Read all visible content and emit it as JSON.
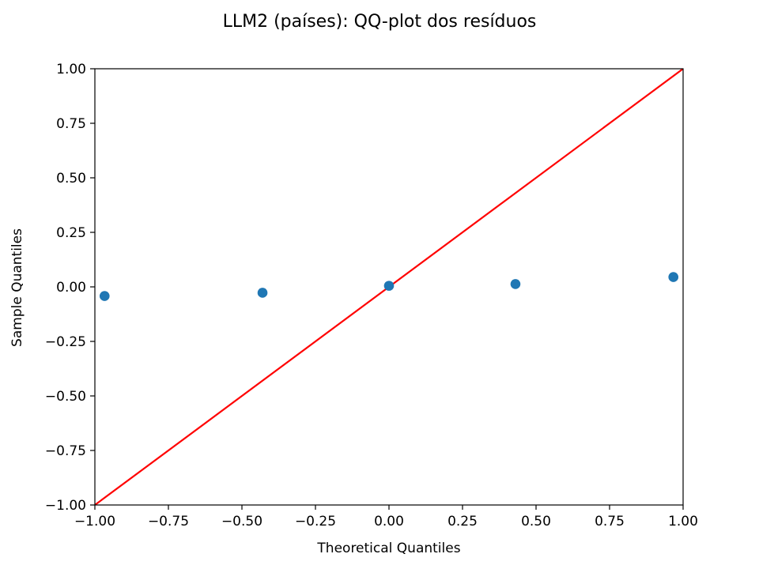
{
  "chart_data": {
    "type": "scatter",
    "title": "LLM2 (países): QQ-plot dos resíduos",
    "xlabel": "Theoretical Quantiles",
    "ylabel": "Sample Quantiles",
    "xlim": [
      -1.0,
      1.0
    ],
    "ylim": [
      -1.0,
      1.0
    ],
    "xticks": [
      "−1.00",
      "−0.75",
      "−0.50",
      "−0.25",
      "0.00",
      "0.25",
      "0.50",
      "0.75",
      "1.00"
    ],
    "yticks": [
      "−1.00",
      "−0.75",
      "−0.50",
      "−0.25",
      "0.00",
      "0.25",
      "0.50",
      "0.75",
      "1.00"
    ],
    "grid": false,
    "points": {
      "x": [
        -0.967,
        -0.43,
        0.0,
        0.43,
        0.967
      ],
      "y": [
        -0.042,
        -0.027,
        0.005,
        0.013,
        0.045
      ],
      "color": "#1f77b4"
    },
    "reference_line": {
      "from": [
        -1.0,
        -1.0
      ],
      "to": [
        1.0,
        1.0
      ],
      "color": "#ff0000"
    }
  }
}
